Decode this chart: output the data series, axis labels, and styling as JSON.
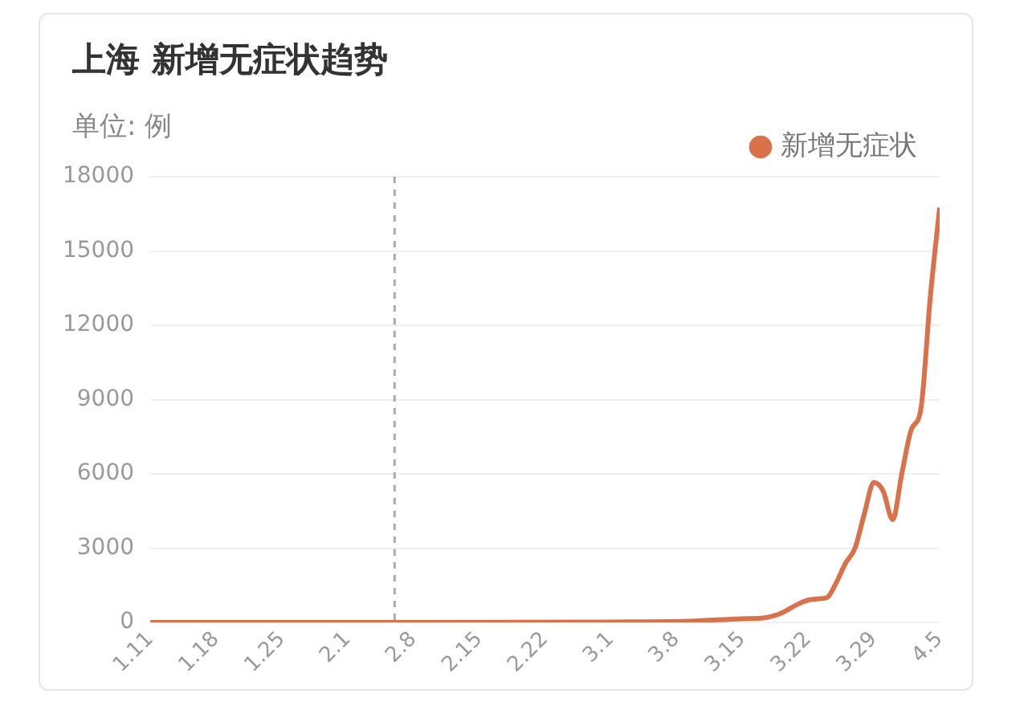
{
  "chart_data": {
    "type": "line",
    "title": "上海 新增无症状趋势",
    "subtitle": "单位: 例",
    "x": [
      "--01-11",
      "--02-06",
      "--03-01",
      "--03-10",
      "--03-15",
      "--03-17",
      "--03-19",
      "--03-21",
      "--03-22",
      "--03-23",
      "--03-24",
      "--03-25",
      "--03-26",
      "--03-27",
      "--03-28",
      "--03-29",
      "--03-30",
      "--03-31",
      "--04-01",
      "--04-02",
      "--04-03",
      "--04-04",
      "--04-05"
    ],
    "series": [
      {
        "name": "新增无症状",
        "color": "#d9714a",
        "values": [
          0,
          0,
          20,
          60,
          150,
          170,
          350,
          750,
          900,
          950,
          1000,
          1600,
          2400,
          3000,
          4400,
          5650,
          5300,
          4150,
          6050,
          7800,
          8600,
          13100,
          16750
        ]
      }
    ],
    "xlim": [
      "--01-11",
      "--04-05"
    ],
    "xticks": [
      {
        "value": "--01-11",
        "label": "1.11"
      },
      {
        "value": "--01-18",
        "label": "1.18"
      },
      {
        "value": "--01-25",
        "label": "1.25"
      },
      {
        "value": "--02-01",
        "label": "2.1"
      },
      {
        "value": "--02-08",
        "label": "2.8"
      },
      {
        "value": "--02-15",
        "label": "2.15"
      },
      {
        "value": "--02-22",
        "label": "2.22"
      },
      {
        "value": "--03-01",
        "label": "3.1"
      },
      {
        "value": "--03-08",
        "label": "3.8"
      },
      {
        "value": "--03-15",
        "label": "3.15"
      },
      {
        "value": "--03-22",
        "label": "3.22"
      },
      {
        "value": "--03-29",
        "label": "3.29"
      },
      {
        "value": "--04-05",
        "label": "4.5"
      }
    ],
    "ylim": [
      0,
      18000
    ],
    "yticks": [
      0,
      3000,
      6000,
      9000,
      12000,
      15000,
      18000
    ],
    "ref_lines": [
      {
        "axis": "x",
        "value": "--02-06",
        "color": "#aaaaaa",
        "line_style": "dashed"
      }
    ],
    "grid": "y",
    "legend": "top right",
    "marker": "none",
    "line_style": "solid"
  }
}
